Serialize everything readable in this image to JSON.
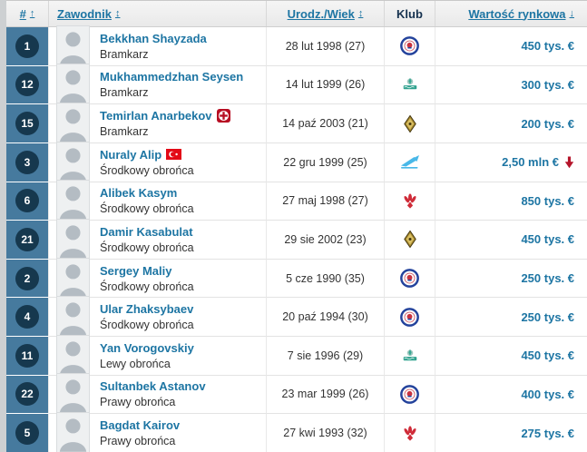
{
  "header": {
    "col_num": "#",
    "col_num_arrow": "↑",
    "col_player": "Zawodnik",
    "col_player_arrow": "↕",
    "col_birth": "Urodz./Wiek",
    "col_birth_arrow": "↕",
    "col_club": "Klub",
    "col_value": "Wartość rynkowa",
    "col_value_arrow": "↓"
  },
  "colors": {
    "accent_blue": "#1d75a3",
    "number_cell_bg": "#467a9e",
    "number_circle_bg": "#16384e",
    "trend_down_red": "#b5152b",
    "injury_red": "#b70d22",
    "flag_red": "#e30a17"
  },
  "table": {
    "rows": [
      {
        "num": "1",
        "name": "Bekkhan Shayzada",
        "position": "Bramkarz",
        "birth": "28 lut 1998 (27)",
        "club": "ordabasy",
        "value": "450 tys. €"
      },
      {
        "num": "12",
        "name": "Mukhammedzhan Seysen",
        "position": "Bramkarz",
        "birth": "14 lut 1999 (26)",
        "club": "atyrau",
        "value": "300 tys. €"
      },
      {
        "num": "15",
        "name": "Temirlan Anarbekov",
        "position": "Bramkarz",
        "birth": "14 paź 2003 (21)",
        "club": "kairat",
        "value": "200 tys. €",
        "name_icon": "injury-cross-icon"
      },
      {
        "num": "3",
        "name": "Nuraly Alip",
        "position": "Środkowy obrońca",
        "birth": "22 gru 1999 (25)",
        "club": "zenit",
        "value": "2,50 mln €",
        "name_icon": "turkey-flag-icon",
        "trend": "down"
      },
      {
        "num": "6",
        "name": "Alibek Kasym",
        "position": "Środkowy obrońca",
        "birth": "27 maj 1998 (27)",
        "club": "aktobe",
        "value": "850 tys. €"
      },
      {
        "num": "21",
        "name": "Damir Kasabulat",
        "position": "Środkowy obrońca",
        "birth": "29 sie 2002 (23)",
        "club": "kairat",
        "value": "450 tys. €"
      },
      {
        "num": "2",
        "name": "Sergey Maliy",
        "position": "Środkowy obrońca",
        "birth": "5 cze 1990 (35)",
        "club": "ordabasy",
        "value": "250 tys. €"
      },
      {
        "num": "4",
        "name": "Ular Zhaksybaev",
        "position": "Środkowy obrońca",
        "birth": "20 paź 1994 (30)",
        "club": "ordabasy",
        "value": "250 tys. €"
      },
      {
        "num": "11",
        "name": "Yan Vorogovskiy",
        "position": "Lewy obrońca",
        "birth": "7 sie 1996 (29)",
        "club": "atyrau",
        "value": "450 tys. €"
      },
      {
        "num": "22",
        "name": "Sultanbek Astanov",
        "position": "Prawy obrońca",
        "birth": "23 mar 1999 (26)",
        "club": "ordabasy",
        "value": "400 tys. €"
      },
      {
        "num": "5",
        "name": "Bagdat Kairov",
        "position": "Prawy obrońca",
        "birth": "27 kwi 1993 (32)",
        "club": "aktobe",
        "value": "275 tys. €"
      }
    ]
  }
}
